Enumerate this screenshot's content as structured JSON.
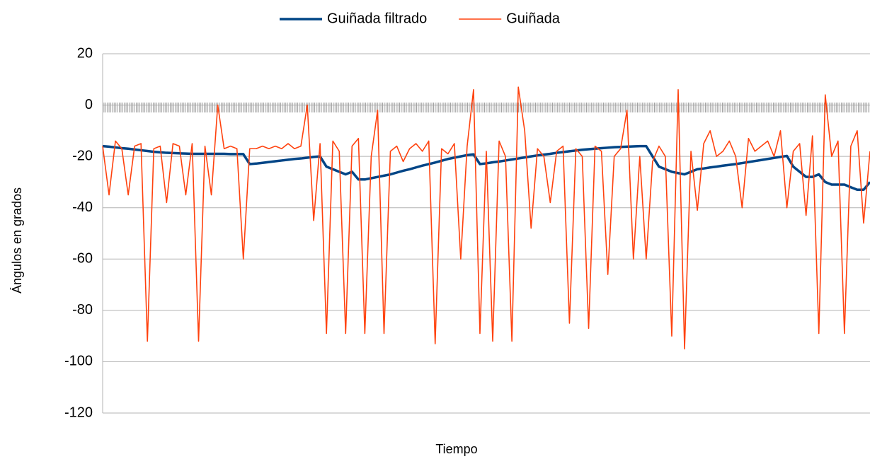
{
  "chart_data": {
    "type": "line",
    "y_label": "Ángulos en grados",
    "x_label": "Tiempo",
    "ylim": [
      -120,
      20
    ],
    "yticks": [
      -120,
      -100,
      -80,
      -60,
      -40,
      -20,
      0,
      20
    ],
    "grid": true,
    "legend": "top",
    "series": [
      {
        "name": "Guiñada filtrado",
        "color": "#004586",
        "width": 3.5,
        "values": [
          -16,
          -16.2,
          -16.5,
          -16.8,
          -17,
          -17.3,
          -17.6,
          -17.9,
          -18.2,
          -18.4,
          -18.6,
          -18.7,
          -18.8,
          -18.9,
          -19,
          -19,
          -19,
          -19,
          -19,
          -19,
          -19.1,
          -19.1,
          -19.1,
          -23,
          -22.8,
          -22.5,
          -22.2,
          -21.9,
          -21.6,
          -21.3,
          -21,
          -20.8,
          -20.5,
          -20.2,
          -20,
          -24,
          -25,
          -26,
          -27,
          -26,
          -29,
          -29,
          -28.5,
          -28,
          -27.5,
          -27,
          -26.3,
          -25.6,
          -25,
          -24.3,
          -23.6,
          -23,
          -22.4,
          -21.7,
          -21,
          -20.5,
          -20,
          -19.5,
          -19.2,
          -23,
          -22.7,
          -22.3,
          -22,
          -21.6,
          -21.2,
          -20.8,
          -20.4,
          -20,
          -19.6,
          -19.3,
          -19,
          -18.6,
          -18.3,
          -18,
          -17.7,
          -17.4,
          -17.2,
          -17,
          -16.8,
          -16.6,
          -16.4,
          -16.3,
          -16.2,
          -16.1,
          -16,
          -16,
          -20,
          -24,
          -25,
          -26,
          -26.5,
          -27,
          -26,
          -25,
          -24.7,
          -24.3,
          -24,
          -23.6,
          -23.3,
          -23,
          -22.6,
          -22.2,
          -21.8,
          -21.4,
          -21,
          -20.6,
          -20.2,
          -19.8,
          -24,
          -26,
          -28,
          -28,
          -27,
          -30,
          -31,
          -31,
          -31,
          -32,
          -33,
          -33,
          -30
        ]
      },
      {
        "name": "Guiñada",
        "color": "#ff420e",
        "width": 1.6,
        "values": [
          -16,
          -35,
          -14,
          -17,
          -35,
          -16,
          -15,
          -92,
          -17,
          -16,
          -38,
          -15,
          -16,
          -35,
          -15,
          -92,
          -16,
          -35,
          0,
          -17,
          -16,
          -17,
          -60,
          -17,
          -17,
          -16,
          -17,
          -16,
          -17,
          -15,
          -17,
          -16,
          0,
          -45,
          -15,
          -89,
          -14,
          -18,
          -89,
          -16,
          -13,
          -89,
          -20,
          -2,
          -89,
          -18,
          -16,
          -22,
          -17,
          -15,
          -18,
          -14,
          -93,
          -17,
          -19,
          -15,
          -60,
          -16,
          6,
          -89,
          -18,
          -92,
          -14,
          -20,
          -92,
          7,
          -10,
          -48,
          -17,
          -20,
          -38,
          -18,
          -16,
          -85,
          -17,
          -20,
          -87,
          -16,
          -18,
          -66,
          -20,
          -17,
          -2,
          -60,
          -20,
          -60,
          -22,
          -16,
          -20,
          -90,
          6,
          -95,
          -18,
          -41,
          -15,
          -10,
          -20,
          -18,
          -14,
          -20,
          -40,
          -13,
          -18,
          -16,
          -14,
          -20,
          -10,
          -40,
          -18,
          -15,
          -43,
          -12,
          -89,
          4,
          -20,
          -14,
          -89,
          -16,
          -10,
          -46,
          -18
        ]
      }
    ]
  }
}
